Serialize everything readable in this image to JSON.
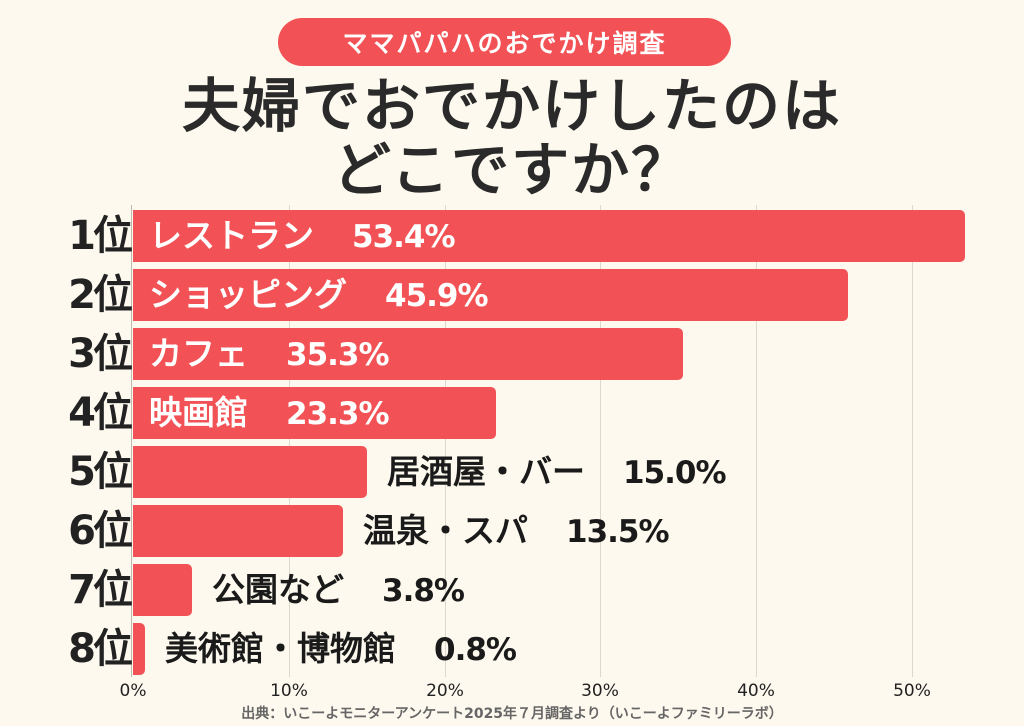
{
  "header": {
    "badge": "ママパパハのおでかけ調査",
    "title_line1": "夫婦でおでかけしたのは",
    "title_line2": "どこですか？"
  },
  "source": "出典：いこーよモニターアンケート2025年７月調査より（いこーよファミリーラボ）",
  "colors": {
    "bar": "#f25255",
    "background": "#fdf9ee",
    "text": "#222222"
  },
  "ticks": [
    "0%",
    "10%",
    "20%",
    "30%",
    "40%",
    "50%"
  ],
  "rows": [
    {
      "rank": "1位",
      "label": "レストラン",
      "value_text": "53.4%",
      "value": 53.4
    },
    {
      "rank": "2位",
      "label": "ショッピング",
      "value_text": "45.9%",
      "value": 45.9
    },
    {
      "rank": "3位",
      "label": "カフェ",
      "value_text": "35.3%",
      "value": 35.3
    },
    {
      "rank": "4位",
      "label": "映画館",
      "value_text": "23.3%",
      "value": 23.3
    },
    {
      "rank": "5位",
      "label": "居酒屋・バー",
      "value_text": "15.0%",
      "value": 15.0
    },
    {
      "rank": "6位",
      "label": "温泉・スパ",
      "value_text": "13.5%",
      "value": 13.5
    },
    {
      "rank": "7位",
      "label": "公園など",
      "value_text": "3.8%",
      "value": 3.8
    },
    {
      "rank": "8位",
      "label": "美術館・博物館",
      "value_text": "0.8%",
      "value": 0.8
    }
  ],
  "chart_data": {
    "type": "bar",
    "orientation": "horizontal",
    "title": "夫婦でおでかけしたのはどこですか？",
    "subtitle": "ママパパハのおでかけ調査",
    "categories": [
      "レストラン",
      "ショッピング",
      "カフェ",
      "映画館",
      "居酒屋・バー",
      "温泉・スパ",
      "公園など",
      "美術館・博物館"
    ],
    "ranks": [
      "1位",
      "2位",
      "3位",
      "4位",
      "5位",
      "6位",
      "7位",
      "8位"
    ],
    "values": [
      53.4,
      45.9,
      35.3,
      23.3,
      15.0,
      13.5,
      3.8,
      0.8
    ],
    "xlabel": "",
    "ylabel": "",
    "xlim": [
      0,
      50
    ],
    "x_ticks": [
      "0%",
      "10%",
      "20%",
      "30%",
      "40%",
      "50%"
    ],
    "grid": true,
    "legend": null,
    "annotation": "出典：いこーよモニターアンケート2025年７月調査より（いこーよファミリーラボ）"
  }
}
